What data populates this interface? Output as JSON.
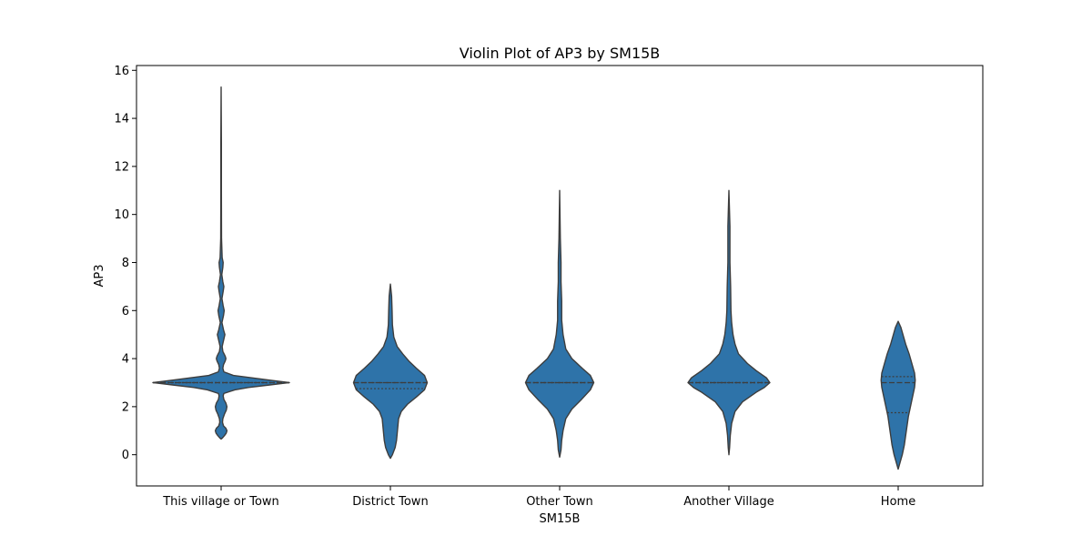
{
  "chart_data": {
    "type": "violin",
    "title": "Violin Plot of AP3 by SM15B",
    "xlabel": "SM15B",
    "ylabel": "AP3",
    "ylim": [
      -1.3,
      16.2
    ],
    "yticks": [
      0,
      2,
      4,
      6,
      8,
      10,
      12,
      14,
      16
    ],
    "grid": false,
    "legend": "none",
    "color": "#2e73a9",
    "edge_color": "#3d3d3d",
    "categories": [
      "This village or Town",
      "District Town",
      "Other Town",
      "Another Village",
      "Home"
    ],
    "violins": [
      {
        "category": "This village or Town",
        "quartiles": [
          3.0,
          3.0,
          3.0
        ],
        "profile": [
          [
            0.65,
            0
          ],
          [
            0.7,
            0.02
          ],
          [
            0.8,
            0.05
          ],
          [
            0.9,
            0.075
          ],
          [
            1.0,
            0.085
          ],
          [
            1.1,
            0.07
          ],
          [
            1.2,
            0.035
          ],
          [
            1.35,
            0.02
          ],
          [
            1.5,
            0.025
          ],
          [
            1.7,
            0.05
          ],
          [
            1.85,
            0.075
          ],
          [
            2.0,
            0.085
          ],
          [
            2.15,
            0.07
          ],
          [
            2.3,
            0.04
          ],
          [
            2.45,
            0.03
          ],
          [
            2.55,
            0.04
          ],
          [
            2.7,
            0.2
          ],
          [
            2.8,
            0.4
          ],
          [
            2.9,
            0.7
          ],
          [
            3.0,
            1.0
          ],
          [
            3.1,
            0.72
          ],
          [
            3.2,
            0.45
          ],
          [
            3.3,
            0.18
          ],
          [
            3.45,
            0.04
          ],
          [
            3.6,
            0.025
          ],
          [
            3.75,
            0.035
          ],
          [
            3.9,
            0.06
          ],
          [
            4.0,
            0.07
          ],
          [
            4.1,
            0.06
          ],
          [
            4.3,
            0.025
          ],
          [
            4.5,
            0.015
          ],
          [
            4.75,
            0.035
          ],
          [
            5.0,
            0.055
          ],
          [
            5.2,
            0.035
          ],
          [
            5.5,
            0.012
          ],
          [
            5.8,
            0.035
          ],
          [
            6.0,
            0.045
          ],
          [
            6.2,
            0.03
          ],
          [
            6.5,
            0.012
          ],
          [
            6.8,
            0.03
          ],
          [
            7.0,
            0.04
          ],
          [
            7.2,
            0.025
          ],
          [
            7.5,
            0.01
          ],
          [
            7.8,
            0.025
          ],
          [
            8.0,
            0.03
          ],
          [
            8.2,
            0.015
          ],
          [
            9.0,
            0.006
          ],
          [
            11.0,
            0.004
          ],
          [
            13.0,
            0.004
          ],
          [
            15.3,
            0
          ]
        ]
      },
      {
        "category": "District Town",
        "quartiles": [
          2.75,
          3.0,
          3.0
        ],
        "profile": [
          [
            -0.15,
            0
          ],
          [
            0.0,
            0.03
          ],
          [
            0.3,
            0.07
          ],
          [
            0.6,
            0.09
          ],
          [
            0.9,
            0.1
          ],
          [
            1.2,
            0.11
          ],
          [
            1.5,
            0.12
          ],
          [
            1.8,
            0.16
          ],
          [
            2.1,
            0.25
          ],
          [
            2.4,
            0.38
          ],
          [
            2.7,
            0.5
          ],
          [
            3.0,
            0.54
          ],
          [
            3.3,
            0.5
          ],
          [
            3.6,
            0.38
          ],
          [
            3.9,
            0.27
          ],
          [
            4.2,
            0.18
          ],
          [
            4.5,
            0.1
          ],
          [
            4.9,
            0.05
          ],
          [
            5.4,
            0.03
          ],
          [
            6.0,
            0.025
          ],
          [
            6.6,
            0.018
          ],
          [
            7.1,
            0
          ]
        ]
      },
      {
        "category": "Other Town",
        "quartiles": [
          3.0,
          3.0,
          3.0
        ],
        "profile": [
          [
            -0.1,
            0
          ],
          [
            0.2,
            0.02
          ],
          [
            0.6,
            0.03
          ],
          [
            1.0,
            0.05
          ],
          [
            1.5,
            0.09
          ],
          [
            1.9,
            0.18
          ],
          [
            2.3,
            0.32
          ],
          [
            2.7,
            0.45
          ],
          [
            3.0,
            0.5
          ],
          [
            3.3,
            0.45
          ],
          [
            3.6,
            0.33
          ],
          [
            4.0,
            0.18
          ],
          [
            4.4,
            0.09
          ],
          [
            5.0,
            0.05
          ],
          [
            5.6,
            0.03
          ],
          [
            6.4,
            0.03
          ],
          [
            7.2,
            0.02
          ],
          [
            8.0,
            0.02
          ],
          [
            9.0,
            0.01
          ],
          [
            11.0,
            0
          ]
        ]
      },
      {
        "category": "Another Village",
        "quartiles": [
          3.0,
          3.0,
          3.0
        ],
        "profile": [
          [
            0.0,
            0
          ],
          [
            0.3,
            0.01
          ],
          [
            0.8,
            0.02
          ],
          [
            1.3,
            0.04
          ],
          [
            1.8,
            0.09
          ],
          [
            2.2,
            0.2
          ],
          [
            2.6,
            0.4
          ],
          [
            2.8,
            0.52
          ],
          [
            3.0,
            0.6
          ],
          [
            3.2,
            0.55
          ],
          [
            3.5,
            0.4
          ],
          [
            3.8,
            0.27
          ],
          [
            4.2,
            0.14
          ],
          [
            4.6,
            0.09
          ],
          [
            5.0,
            0.06
          ],
          [
            5.5,
            0.04
          ],
          [
            6.0,
            0.03
          ],
          [
            7.0,
            0.025
          ],
          [
            8.0,
            0.015
          ],
          [
            9.5,
            0.015
          ],
          [
            11.0,
            0
          ]
        ]
      },
      {
        "category": "Home",
        "quartiles": [
          1.75,
          3.0,
          3.25
        ],
        "profile": [
          [
            -0.6,
            0
          ],
          [
            -0.3,
            0.03
          ],
          [
            0.0,
            0.06
          ],
          [
            0.4,
            0.09
          ],
          [
            0.8,
            0.11
          ],
          [
            1.2,
            0.13
          ],
          [
            1.6,
            0.15
          ],
          [
            2.0,
            0.18
          ],
          [
            2.4,
            0.21
          ],
          [
            2.8,
            0.24
          ],
          [
            3.1,
            0.25
          ],
          [
            3.4,
            0.24
          ],
          [
            3.8,
            0.2
          ],
          [
            4.2,
            0.16
          ],
          [
            4.6,
            0.11
          ],
          [
            5.0,
            0.07
          ],
          [
            5.3,
            0.04
          ],
          [
            5.55,
            0
          ]
        ]
      }
    ]
  }
}
